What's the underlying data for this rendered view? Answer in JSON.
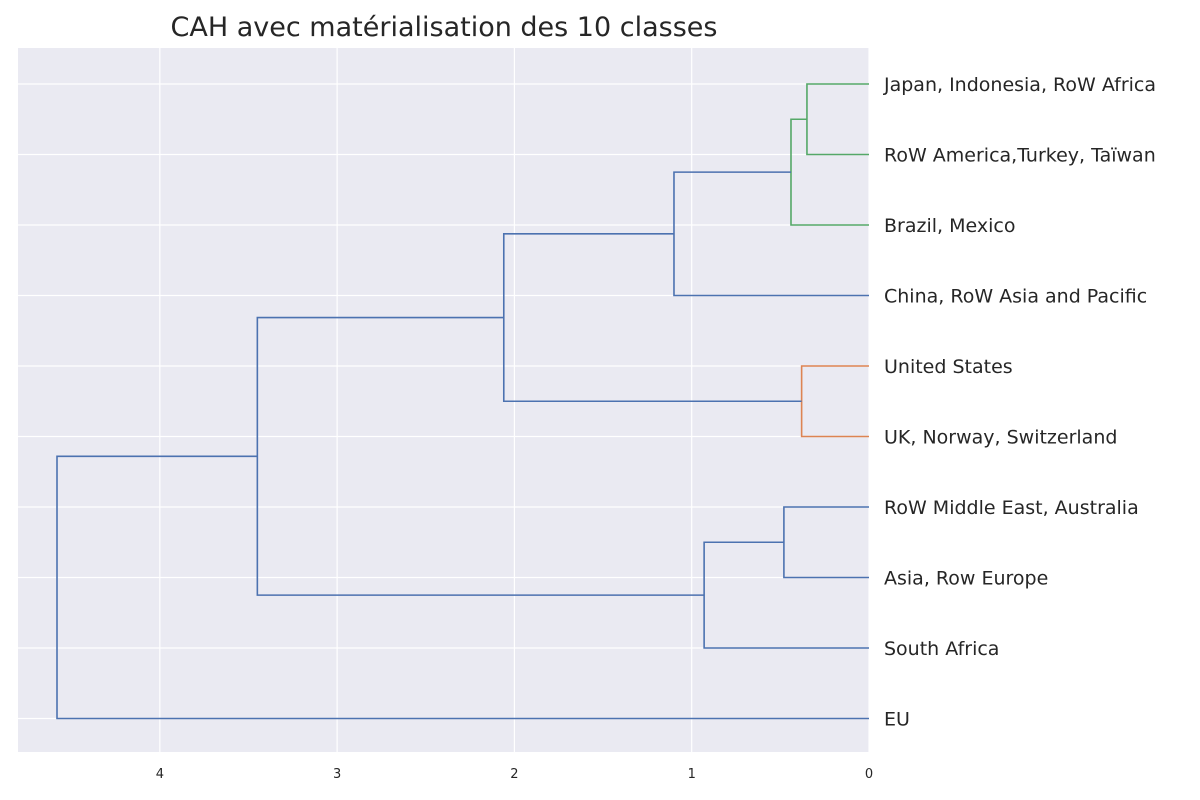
{
  "chart_data": {
    "type": "dendrogram",
    "title": "CAH avec matérialisation des 10 classes",
    "orientation": "left",
    "xlim": [
      4.8,
      0
    ],
    "xticks": [
      "4",
      "3",
      "2",
      "1",
      "0"
    ],
    "grid": true,
    "background": "#EAEAF2",
    "leaves": [
      "Japan, Indonesia, RoW Africa",
      "RoW America,Turkey, Taïwan",
      "Brazil, Mexico",
      "China, RoW Asia and Pacific",
      "United States",
      "UK, Norway, Switzerland",
      "RoW Middle East, Australia",
      "Asia, Row Europe",
      "South Africa",
      "EU"
    ],
    "merges": [
      {
        "left": "Japan, Indonesia, RoW Africa",
        "right": "RoW America,Turkey, Taïwan",
        "height": 0.35,
        "color": "#55A868"
      },
      {
        "left": "Japan, Indonesia, RoW Africa + RoW America,Turkey, Taïwan",
        "right": "Brazil, Mexico",
        "height": 0.44,
        "color": "#55A868"
      },
      {
        "left": "United States",
        "right": "UK, Norway, Switzerland",
        "height": 0.38,
        "color": "#DD8452"
      },
      {
        "left": "RoW Middle East, Australia",
        "right": "Asia, Row Europe",
        "height": 0.48,
        "color": "#4C72B0"
      },
      {
        "left": "RoW Middle East, Australia + Asia, Row Europe",
        "right": "South Africa",
        "height": 0.93,
        "color": "#4C72B0"
      },
      {
        "left": "Japan..Brazil cluster",
        "right": "China, RoW Asia and Pacific",
        "height": 1.1,
        "color": "#4C72B0"
      },
      {
        "left": "Japan..China cluster",
        "right": "United States + UK, Norway, Switzerland",
        "height": 2.06,
        "color": "#4C72B0"
      },
      {
        "left": "Japan..UK cluster",
        "right": "RoW Middle East..South Africa cluster",
        "height": 3.45,
        "color": "#4C72B0"
      },
      {
        "left": "all except EU",
        "right": "EU",
        "height": 4.58,
        "color": "#4C72B0"
      }
    ]
  }
}
